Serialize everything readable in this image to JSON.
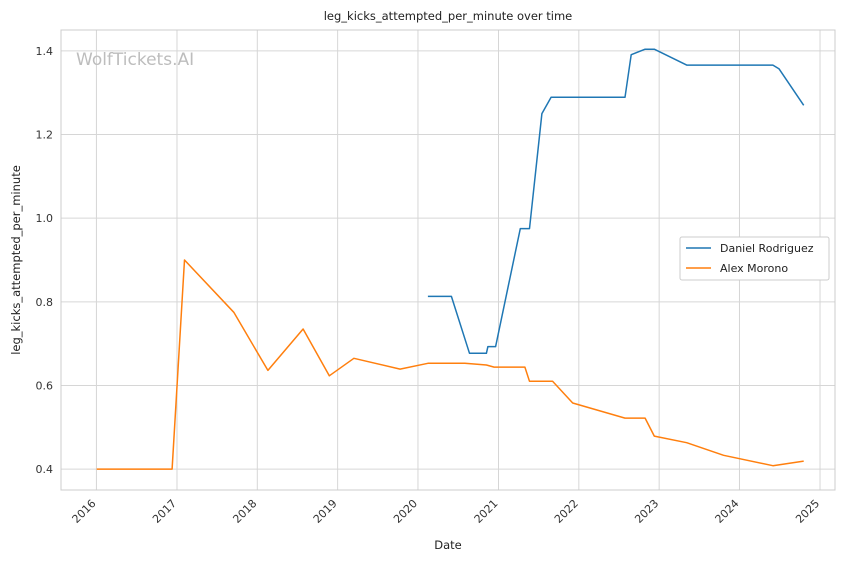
{
  "chart_data": {
    "type": "line",
    "title": "leg_kicks_attempted_per_minute over time",
    "xlabel": "Date",
    "ylabel": "leg_kicks_attempted_per_minute",
    "watermark": "WolfTickets.AI",
    "xlim": [
      "2015-07-24",
      "2025-03-10"
    ],
    "ylim": [
      0.35,
      1.45
    ],
    "x_ticks": [
      "2016",
      "2017",
      "2018",
      "2019",
      "2020",
      "2021",
      "2022",
      "2023",
      "2024",
      "2025"
    ],
    "y_ticks": [
      "0.4",
      "0.6",
      "0.8",
      "1.0",
      "1.2",
      "1.4"
    ],
    "grid": true,
    "legend_position": "right",
    "series": [
      {
        "name": "Daniel Rodriguez",
        "color": "#1f77b4",
        "points": [
          [
            "2020-02-15",
            0.813
          ],
          [
            "2020-06-01",
            0.813
          ],
          [
            "2020-08-22",
            0.677
          ],
          [
            "2020-11-07",
            0.677
          ],
          [
            "2020-11-14",
            0.693
          ],
          [
            "2020-12-19",
            0.693
          ],
          [
            "2021-04-10",
            0.975
          ],
          [
            "2021-05-22",
            0.975
          ],
          [
            "2021-07-17",
            1.25
          ],
          [
            "2021-08-28",
            1.289
          ],
          [
            "2022-07-30",
            1.289
          ],
          [
            "2022-08-27",
            1.391
          ],
          [
            "2022-10-29",
            1.404
          ],
          [
            "2022-12-10",
            1.404
          ],
          [
            "2023-05-06",
            1.366
          ],
          [
            "2024-06-01",
            1.366
          ],
          [
            "2024-06-29",
            1.357
          ],
          [
            "2024-10-19",
            1.27
          ]
        ]
      },
      {
        "name": "Alex Morono",
        "color": "#ff7f0e",
        "points": [
          [
            "2016-01-02",
            0.4
          ],
          [
            "2016-12-10",
            0.4
          ],
          [
            "2017-02-04",
            0.9
          ],
          [
            "2017-09-16",
            0.775
          ],
          [
            "2018-02-18",
            0.636
          ],
          [
            "2018-07-28",
            0.735
          ],
          [
            "2018-11-24",
            0.623
          ],
          [
            "2019-03-16",
            0.665
          ],
          [
            "2019-10-12",
            0.639
          ],
          [
            "2020-02-15",
            0.653
          ],
          [
            "2020-08-01",
            0.653
          ],
          [
            "2020-11-07",
            0.649
          ],
          [
            "2020-12-12",
            0.644
          ],
          [
            "2021-05-01",
            0.644
          ],
          [
            "2021-05-22",
            0.61
          ],
          [
            "2021-09-04",
            0.61
          ],
          [
            "2021-12-04",
            0.558
          ],
          [
            "2022-07-30",
            0.522
          ],
          [
            "2022-10-29",
            0.522
          ],
          [
            "2022-12-10",
            0.479
          ],
          [
            "2023-05-06",
            0.463
          ],
          [
            "2023-10-21",
            0.433
          ],
          [
            "2024-06-01",
            0.408
          ],
          [
            "2024-10-19",
            0.419
          ]
        ]
      }
    ]
  }
}
